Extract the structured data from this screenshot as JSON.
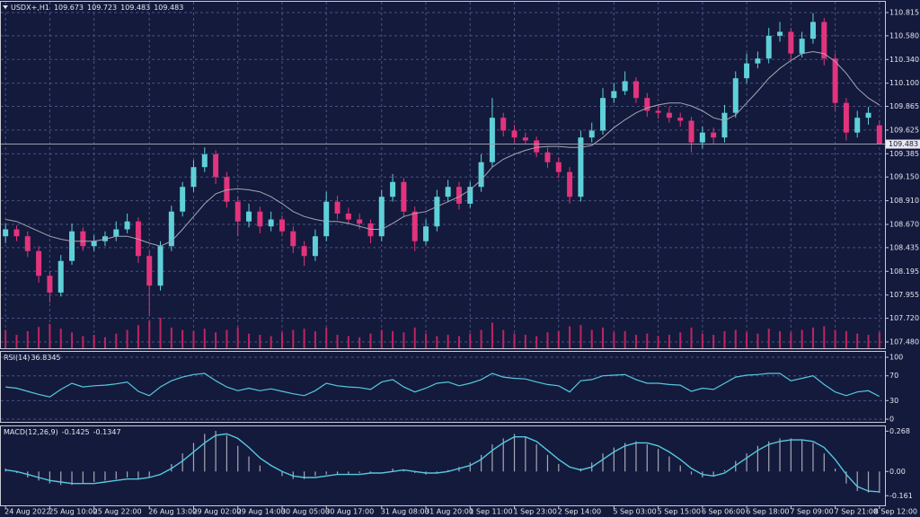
{
  "chart_data": [
    {
      "type": "candlestick",
      "title": "USDX+,H1",
      "up_color": "#5fd0d8",
      "down_color": "#e2347c",
      "ma_color": "#a4a6b4",
      "volume_color": "#c0245f",
      "grid": true,
      "categories": [
        "24 Aug 2022",
        null,
        null,
        null,
        "25 Aug 10:00",
        null,
        null,
        null,
        "25 Aug 22:00",
        null,
        null,
        null,
        null,
        "26 Aug 13:00",
        null,
        null,
        null,
        "29 Aug 02:00",
        null,
        null,
        null,
        "29 Aug 14:00",
        null,
        null,
        null,
        "30 Aug 05:00",
        null,
        null,
        null,
        "30 Aug 17:00",
        null,
        null,
        null,
        null,
        "31 Aug 08:00",
        null,
        null,
        null,
        "31 Aug 20:00",
        null,
        null,
        null,
        "1 Sep 11:00",
        null,
        null,
        null,
        "1 Sep 23:00",
        null,
        null,
        null,
        "2 Sep 14:00",
        null,
        null,
        null,
        null,
        "5 Sep 03:00",
        null,
        null,
        null,
        "5 Sep 15:00",
        null,
        null,
        null,
        "6 Sep 06:00",
        null,
        null,
        null,
        "6 Sep 18:00",
        null,
        null,
        null,
        "7 Sep 09:00",
        null,
        null,
        null,
        "7 Sep 21:00",
        null,
        null,
        null,
        "8 Sep 12:00"
      ],
      "open": [
        108.55,
        108.62,
        108.55,
        108.4,
        108.15,
        107.98,
        108.3,
        108.6,
        108.45,
        108.5,
        108.55,
        108.62,
        108.7,
        108.35,
        108.05,
        108.45,
        108.8,
        109.05,
        109.25,
        109.38,
        109.15,
        108.9,
        108.7,
        108.8,
        108.65,
        108.72,
        108.6,
        108.45,
        108.35,
        108.55,
        108.9,
        108.78,
        108.72,
        108.68,
        108.55,
        108.95,
        109.1,
        108.8,
        108.5,
        108.65,
        108.95,
        109.05,
        108.88,
        109.05,
        109.3,
        109.75,
        109.62,
        109.55,
        109.52,
        109.4,
        109.3,
        109.2,
        108.95,
        109.55,
        109.62,
        109.95,
        110.02,
        110.12,
        109.95,
        109.82,
        109.8,
        109.75,
        109.72,
        109.5,
        109.6,
        109.55,
        109.8,
        110.15,
        110.3,
        110.35,
        110.58,
        110.62,
        110.4,
        110.55,
        110.72,
        110.35,
        109.9,
        109.6,
        109.75,
        109.673
      ],
      "high": [
        108.68,
        108.66,
        108.6,
        108.45,
        108.2,
        108.36,
        108.68,
        108.64,
        108.56,
        108.6,
        108.7,
        108.78,
        108.74,
        108.4,
        108.5,
        108.86,
        109.1,
        109.32,
        109.45,
        109.42,
        109.2,
        108.95,
        108.88,
        108.85,
        108.8,
        108.76,
        108.65,
        108.5,
        108.62,
        109.0,
        108.96,
        108.84,
        108.78,
        108.72,
        109.02,
        109.18,
        109.14,
        108.85,
        108.72,
        109.02,
        109.12,
        109.1,
        109.1,
        109.38,
        109.95,
        109.8,
        109.68,
        109.6,
        109.56,
        109.45,
        109.35,
        109.25,
        109.62,
        109.7,
        110.05,
        110.1,
        110.22,
        110.16,
        110.0,
        109.88,
        109.86,
        109.8,
        109.76,
        109.66,
        109.65,
        109.88,
        110.22,
        110.4,
        110.42,
        110.66,
        110.72,
        110.66,
        110.62,
        110.81,
        110.76,
        110.4,
        109.95,
        109.82,
        109.86,
        109.723
      ],
      "low": [
        108.48,
        108.5,
        108.34,
        108.08,
        107.88,
        107.94,
        108.26,
        108.4,
        108.4,
        108.45,
        108.5,
        108.58,
        108.28,
        107.75,
        108.0,
        108.4,
        108.75,
        109.0,
        109.2,
        109.08,
        108.84,
        108.55,
        108.64,
        108.58,
        108.6,
        108.55,
        108.38,
        108.25,
        108.3,
        108.5,
        108.72,
        108.68,
        108.62,
        108.48,
        108.5,
        108.9,
        108.74,
        108.4,
        108.46,
        108.6,
        108.9,
        108.82,
        108.84,
        109.0,
        109.25,
        109.56,
        109.5,
        109.48,
        109.35,
        109.24,
        109.14,
        108.88,
        108.9,
        109.5,
        109.58,
        109.9,
        109.98,
        109.9,
        109.76,
        109.74,
        109.7,
        109.66,
        109.4,
        109.44,
        109.48,
        109.5,
        109.75,
        110.1,
        110.25,
        110.3,
        110.52,
        110.34,
        110.36,
        110.5,
        110.28,
        109.82,
        109.52,
        109.55,
        109.68,
        109.483
      ],
      "close": [
        108.62,
        108.55,
        108.4,
        108.15,
        107.98,
        108.3,
        108.6,
        108.45,
        108.5,
        108.55,
        108.62,
        108.7,
        108.35,
        108.05,
        108.45,
        108.8,
        109.05,
        109.25,
        109.38,
        109.15,
        108.9,
        108.7,
        108.8,
        108.65,
        108.72,
        108.6,
        108.45,
        108.35,
        108.55,
        108.9,
        108.78,
        108.72,
        108.68,
        108.55,
        108.95,
        109.1,
        108.8,
        108.5,
        108.65,
        108.95,
        109.05,
        108.88,
        109.05,
        109.3,
        109.75,
        109.62,
        109.55,
        109.52,
        109.4,
        109.3,
        109.2,
        108.95,
        109.55,
        109.62,
        109.95,
        110.02,
        110.12,
        109.95,
        109.82,
        109.8,
        109.75,
        109.72,
        109.5,
        109.6,
        109.55,
        109.8,
        110.15,
        110.3,
        110.35,
        110.58,
        110.62,
        110.4,
        110.55,
        110.72,
        110.35,
        109.9,
        109.6,
        109.75,
        109.8,
        109.483
      ],
      "ma": [
        108.72,
        108.7,
        108.65,
        108.6,
        108.55,
        108.52,
        108.5,
        108.5,
        108.5,
        108.52,
        108.55,
        108.55,
        108.52,
        108.48,
        108.45,
        108.5,
        108.62,
        108.75,
        108.88,
        108.98,
        109.02,
        109.03,
        109.02,
        109.0,
        108.95,
        108.88,
        108.8,
        108.75,
        108.72,
        108.7,
        108.7,
        108.68,
        108.65,
        108.62,
        108.62,
        108.68,
        108.75,
        108.78,
        108.8,
        108.85,
        108.9,
        108.95,
        109.02,
        109.12,
        109.25,
        109.33,
        109.38,
        109.42,
        109.45,
        109.46,
        109.46,
        109.45,
        109.45,
        109.47,
        109.55,
        109.65,
        109.73,
        109.8,
        109.85,
        109.88,
        109.9,
        109.9,
        109.87,
        109.82,
        109.75,
        109.72,
        109.78,
        109.9,
        110.02,
        110.15,
        110.25,
        110.33,
        110.4,
        110.42,
        110.4,
        110.32,
        110.2,
        110.05,
        109.95,
        109.88
      ],
      "volume": [
        30,
        22,
        28,
        35,
        40,
        32,
        26,
        20,
        22,
        18,
        24,
        30,
        38,
        45,
        50,
        34,
        30,
        28,
        32,
        26,
        30,
        34,
        24,
        22,
        20,
        26,
        30,
        32,
        28,
        34,
        22,
        20,
        18,
        24,
        30,
        28,
        26,
        34,
        24,
        20,
        22,
        20,
        24,
        30,
        42,
        30,
        24,
        22,
        20,
        26,
        28,
        36,
        38,
        30,
        34,
        26,
        28,
        22,
        24,
        20,
        22,
        26,
        34,
        24,
        22,
        28,
        30,
        26,
        24,
        32,
        28,
        26,
        30,
        34,
        36,
        30,
        28,
        24,
        22,
        26
      ],
      "ylim": [
        107.416,
        110.924
      ],
      "yticks": [
        110.815,
        {
          "value": 110.58,
          "label": "110.580"
        },
        {
          "value": 110.34,
          "label": "110.340"
        },
        {
          "value": 110.1,
          "label": "110.100"
        },
        109.865,
        109.625,
        109.385,
        {
          "value": 109.15,
          "label": "109.150"
        },
        {
          "value": 108.91,
          "label": "108.910"
        },
        {
          "value": 108.67,
          "label": "108.670"
        },
        108.435,
        108.195,
        107.955,
        {
          "value": 107.72,
          "label": "107.720"
        },
        {
          "value": 107.48,
          "label": "107.480"
        }
      ]
    },
    {
      "type": "line",
      "title": "RSI(14)",
      "color": "#55c8e0",
      "values": [
        52,
        50,
        45,
        40,
        36,
        48,
        58,
        52,
        54,
        55,
        57,
        60,
        45,
        38,
        52,
        62,
        68,
        72,
        74,
        62,
        52,
        46,
        50,
        46,
        49,
        45,
        41,
        38,
        46,
        58,
        54,
        52,
        51,
        48,
        60,
        64,
        52,
        44,
        50,
        58,
        60,
        54,
        58,
        64,
        74,
        68,
        66,
        65,
        60,
        56,
        54,
        44,
        62,
        64,
        70,
        71,
        72,
        64,
        58,
        58,
        56,
        55,
        45,
        50,
        48,
        58,
        68,
        71,
        72,
        74,
        74,
        62,
        66,
        70,
        56,
        44,
        38,
        44,
        46,
        36.8345
      ],
      "ylim": [
        -4.3,
        108.7
      ],
      "yticks": [
        100,
        70,
        30,
        0
      ]
    },
    {
      "type": "macd",
      "title": "MACD(12,26,9)",
      "histogram_color": "#a8a8b4",
      "signal_color": "#55c8e0",
      "histogram": [
        0.02,
        -0.01,
        -0.04,
        -0.06,
        -0.08,
        -0.09,
        -0.09,
        -0.08,
        -0.07,
        -0.06,
        -0.05,
        -0.04,
        -0.05,
        -0.04,
        0.0,
        0.05,
        0.12,
        0.19,
        0.25,
        0.27,
        0.24,
        0.17,
        0.1,
        0.04,
        0.0,
        -0.03,
        -0.05,
        -0.05,
        -0.03,
        -0.02,
        -0.02,
        -0.02,
        -0.01,
        -0.01,
        0.0,
        0.02,
        0.01,
        -0.01,
        -0.02,
        -0.01,
        0.01,
        0.03,
        0.06,
        0.11,
        0.18,
        0.22,
        0.25,
        0.23,
        0.18,
        0.11,
        0.05,
        0.0,
        0.02,
        0.06,
        0.12,
        0.16,
        0.19,
        0.2,
        0.18,
        0.15,
        0.1,
        0.04,
        -0.02,
        -0.04,
        -0.03,
        0.01,
        0.07,
        0.12,
        0.17,
        0.2,
        0.22,
        0.22,
        0.21,
        0.19,
        0.12,
        0.02,
        -0.08,
        -0.13,
        -0.14,
        -0.1425
      ],
      "signal": [
        0.01,
        0.0,
        -0.02,
        -0.04,
        -0.06,
        -0.07,
        -0.08,
        -0.08,
        -0.08,
        -0.07,
        -0.06,
        -0.05,
        -0.05,
        -0.04,
        -0.02,
        0.02,
        0.07,
        0.13,
        0.19,
        0.24,
        0.25,
        0.22,
        0.16,
        0.09,
        0.04,
        0.0,
        -0.03,
        -0.04,
        -0.04,
        -0.03,
        -0.02,
        -0.02,
        -0.02,
        -0.01,
        -0.01,
        0.0,
        0.01,
        0.0,
        -0.01,
        -0.01,
        0.0,
        0.02,
        0.04,
        0.08,
        0.14,
        0.19,
        0.23,
        0.23,
        0.2,
        0.14,
        0.08,
        0.03,
        0.01,
        0.03,
        0.08,
        0.13,
        0.17,
        0.19,
        0.19,
        0.17,
        0.13,
        0.08,
        0.02,
        -0.02,
        -0.03,
        -0.01,
        0.04,
        0.09,
        0.14,
        0.18,
        0.2,
        0.21,
        0.21,
        0.2,
        0.16,
        0.08,
        -0.02,
        -0.1,
        -0.13,
        -0.1347
      ],
      "ylim": [
        -0.225,
        0.3
      ],
      "yticks": [
        0.268,
        {
          "value": 0,
          "label": "0.00"
        },
        -0.161
      ]
    }
  ]
}
